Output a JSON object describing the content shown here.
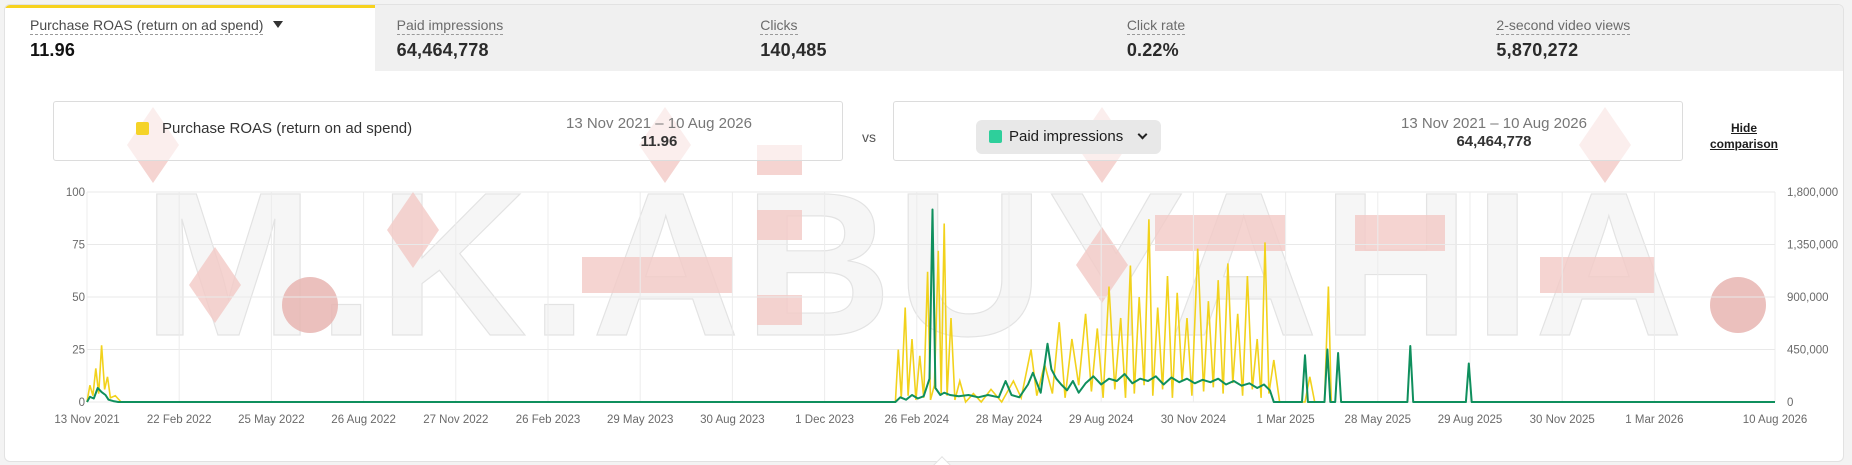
{
  "tabs": [
    {
      "label": "Purchase ROAS (return on ad spend)",
      "value": "11.96",
      "active": true
    },
    {
      "label": "Paid impressions",
      "value": "64,464,778",
      "active": false
    },
    {
      "label": "Clicks",
      "value": "140,485",
      "active": false
    },
    {
      "label": "Click rate",
      "value": "0.22%",
      "active": false
    },
    {
      "label": "2-second video views",
      "value": "5,870,272",
      "active": false
    }
  ],
  "comparison": {
    "primary": {
      "label": "Purchase ROAS (return on ad spend)",
      "range": "13 Nov 2021 – 10 Aug 2026",
      "value": "11.96",
      "color": "#f5d328"
    },
    "vs": "vs",
    "secondary": {
      "label": "Paid impressions",
      "range": "13 Nov 2021 – 10 Aug 2026",
      "value": "64,464,778",
      "color": "#2ecf9b"
    },
    "hide_label_line1": "Hide",
    "hide_label_line2": "comparison"
  },
  "watermark": "M.K.ABUYAHIA",
  "chart_data": {
    "type": "line",
    "x_ticks": [
      "13 Nov 2021",
      "22 Feb 2022",
      "25 May 2022",
      "26 Aug 2022",
      "27 Nov 2022",
      "26 Feb 2023",
      "29 May 2023",
      "30 Aug 2023",
      "1 Dec 2023",
      "26 Feb 2024",
      "28 May 2024",
      "29 Aug 2024",
      "30 Nov 2024",
      "1 Mar 2025",
      "28 May 2025",
      "29 Aug 2025",
      "30 Nov 2025",
      "1 Mar 2026",
      "10 Aug 2026"
    ],
    "y_left": {
      "ticks": [
        0,
        25,
        50,
        75,
        100
      ],
      "range": [
        0,
        100
      ]
    },
    "y_right": {
      "ticks": [
        "0",
        "450,000",
        "900,000",
        "1,350,000",
        "1,800,000"
      ],
      "range": [
        0,
        1800000
      ]
    },
    "grid": true,
    "colors": {
      "roas": "#f2d21c",
      "impressions": "#0f8f5d"
    },
    "series": [
      {
        "name": "Purchase ROAS (return on ad spend)",
        "axis": "left",
        "points": [
          [
            "2021-11-13",
            0
          ],
          [
            "2021-11-16",
            8
          ],
          [
            "2021-11-19",
            3
          ],
          [
            "2021-11-22",
            16
          ],
          [
            "2021-11-25",
            4
          ],
          [
            "2021-11-28",
            27
          ],
          [
            "2021-12-01",
            6
          ],
          [
            "2021-12-04",
            12
          ],
          [
            "2021-12-07",
            2
          ],
          [
            "2021-12-12",
            3
          ],
          [
            "2021-12-18",
            0
          ],
          [
            "2024-02-20",
            0
          ],
          [
            "2024-02-23",
            25
          ],
          [
            "2024-02-26",
            2
          ],
          [
            "2024-03-01",
            45
          ],
          [
            "2024-03-04",
            3
          ],
          [
            "2024-03-08",
            30
          ],
          [
            "2024-03-12",
            1
          ],
          [
            "2024-03-16",
            22
          ],
          [
            "2024-03-20",
            2
          ],
          [
            "2024-03-24",
            62
          ],
          [
            "2024-03-27",
            1
          ],
          [
            "2024-03-31",
            8
          ],
          [
            "2024-04-04",
            72
          ],
          [
            "2024-04-07",
            4
          ],
          [
            "2024-04-10",
            85
          ],
          [
            "2024-04-13",
            3
          ],
          [
            "2024-04-17",
            40
          ],
          [
            "2024-04-21",
            1
          ],
          [
            "2024-04-26",
            10
          ],
          [
            "2024-05-02",
            0
          ],
          [
            "2024-05-10",
            4
          ],
          [
            "2024-05-18",
            0
          ],
          [
            "2024-05-28",
            6
          ],
          [
            "2024-06-08",
            0
          ],
          [
            "2024-06-20",
            10
          ],
          [
            "2024-06-28",
            2
          ],
          [
            "2024-07-08",
            25
          ],
          [
            "2024-07-14",
            3
          ],
          [
            "2024-07-22",
            18
          ],
          [
            "2024-07-30",
            4
          ],
          [
            "2024-08-06",
            38
          ],
          [
            "2024-08-12",
            2
          ],
          [
            "2024-08-19",
            30
          ],
          [
            "2024-08-26",
            8
          ],
          [
            "2024-09-02",
            42
          ],
          [
            "2024-09-08",
            5
          ],
          [
            "2024-09-14",
            35
          ],
          [
            "2024-09-20",
            2
          ],
          [
            "2024-09-26",
            55
          ],
          [
            "2024-10-02",
            6
          ],
          [
            "2024-10-08",
            40
          ],
          [
            "2024-10-13",
            2
          ],
          [
            "2024-10-18",
            65
          ],
          [
            "2024-10-22",
            4
          ],
          [
            "2024-10-27",
            50
          ],
          [
            "2024-11-01",
            8
          ],
          [
            "2024-11-06",
            87
          ],
          [
            "2024-11-10",
            3
          ],
          [
            "2024-11-15",
            45
          ],
          [
            "2024-11-20",
            6
          ],
          [
            "2024-11-25",
            60
          ],
          [
            "2024-11-30",
            2
          ],
          [
            "2024-12-05",
            52
          ],
          [
            "2024-12-10",
            10
          ],
          [
            "2024-12-15",
            40
          ],
          [
            "2024-12-20",
            3
          ],
          [
            "2024-12-26",
            73
          ],
          [
            "2025-01-01",
            5
          ],
          [
            "2025-01-06",
            48
          ],
          [
            "2025-01-11",
            7
          ],
          [
            "2025-01-16",
            58
          ],
          [
            "2025-01-21",
            4
          ],
          [
            "2025-01-26",
            66
          ],
          [
            "2025-01-31",
            9
          ],
          [
            "2025-02-05",
            42
          ],
          [
            "2025-02-10",
            3
          ],
          [
            "2025-02-15",
            60
          ],
          [
            "2025-02-20",
            6
          ],
          [
            "2025-02-25",
            30
          ],
          [
            "2025-03-01",
            2
          ],
          [
            "2025-03-05",
            76
          ],
          [
            "2025-03-09",
            4
          ],
          [
            "2025-03-14",
            20
          ],
          [
            "2025-03-20",
            0
          ],
          [
            "2025-04-15",
            0
          ],
          [
            "2025-04-20",
            12
          ],
          [
            "2025-04-25",
            0
          ],
          [
            "2025-05-05",
            0
          ],
          [
            "2025-05-09",
            55
          ],
          [
            "2025-05-12",
            0
          ]
        ]
      },
      {
        "name": "Paid impressions",
        "axis": "right",
        "points": [
          [
            "2021-11-13",
            0
          ],
          [
            "2021-11-16",
            45000
          ],
          [
            "2021-11-20",
            30000
          ],
          [
            "2021-11-24",
            120000
          ],
          [
            "2021-11-28",
            85000
          ],
          [
            "2021-12-02",
            60000
          ],
          [
            "2021-12-05",
            20000
          ],
          [
            "2021-12-10",
            8000
          ],
          [
            "2021-12-15",
            0
          ],
          [
            "2024-02-20",
            0
          ],
          [
            "2024-02-25",
            40000
          ],
          [
            "2024-03-02",
            20000
          ],
          [
            "2024-03-08",
            60000
          ],
          [
            "2024-03-14",
            30000
          ],
          [
            "2024-03-20",
            50000
          ],
          [
            "2024-03-26",
            200000
          ],
          [
            "2024-03-29",
            1650000
          ],
          [
            "2024-04-01",
            120000
          ],
          [
            "2024-04-06",
            60000
          ],
          [
            "2024-04-10",
            80000
          ],
          [
            "2024-04-16",
            60000
          ],
          [
            "2024-04-25",
            50000
          ],
          [
            "2024-05-05",
            60000
          ],
          [
            "2024-05-15",
            40000
          ],
          [
            "2024-05-25",
            60000
          ],
          [
            "2024-06-05",
            40000
          ],
          [
            "2024-06-12",
            180000
          ],
          [
            "2024-06-18",
            60000
          ],
          [
            "2024-06-26",
            40000
          ],
          [
            "2024-07-05",
            150000
          ],
          [
            "2024-07-10",
            250000
          ],
          [
            "2024-07-18",
            80000
          ],
          [
            "2024-07-25",
            500000
          ],
          [
            "2024-07-29",
            280000
          ],
          [
            "2024-08-03",
            200000
          ],
          [
            "2024-08-08",
            150000
          ],
          [
            "2024-08-14",
            100000
          ],
          [
            "2024-08-20",
            180000
          ],
          [
            "2024-08-26",
            80000
          ],
          [
            "2024-09-02",
            160000
          ],
          [
            "2024-09-10",
            220000
          ],
          [
            "2024-09-18",
            150000
          ],
          [
            "2024-09-26",
            200000
          ],
          [
            "2024-10-04",
            180000
          ],
          [
            "2024-10-12",
            240000
          ],
          [
            "2024-10-20",
            160000
          ],
          [
            "2024-10-28",
            200000
          ],
          [
            "2024-11-05",
            180000
          ],
          [
            "2024-11-13",
            220000
          ],
          [
            "2024-11-21",
            150000
          ],
          [
            "2024-11-29",
            210000
          ],
          [
            "2024-12-07",
            170000
          ],
          [
            "2024-12-15",
            200000
          ],
          [
            "2024-12-23",
            160000
          ],
          [
            "2024-12-31",
            190000
          ],
          [
            "2025-01-08",
            170000
          ],
          [
            "2025-01-16",
            200000
          ],
          [
            "2025-01-24",
            150000
          ],
          [
            "2025-02-01",
            180000
          ],
          [
            "2025-02-09",
            140000
          ],
          [
            "2025-02-17",
            160000
          ],
          [
            "2025-02-25",
            120000
          ],
          [
            "2025-03-04",
            150000
          ],
          [
            "2025-03-10",
            100000
          ],
          [
            "2025-03-14",
            0
          ],
          [
            "2025-04-12",
            0
          ],
          [
            "2025-04-15",
            400000
          ],
          [
            "2025-04-18",
            0
          ],
          [
            "2025-05-05",
            0
          ],
          [
            "2025-05-08",
            450000
          ],
          [
            "2025-05-11",
            0
          ],
          [
            "2025-05-16",
            0
          ],
          [
            "2025-05-19",
            420000
          ],
          [
            "2025-05-22",
            0
          ],
          [
            "2025-07-29",
            0
          ],
          [
            "2025-08-01",
            480000
          ],
          [
            "2025-08-04",
            0
          ],
          [
            "2025-09-27",
            0
          ],
          [
            "2025-09-30",
            330000
          ],
          [
            "2025-10-03",
            0
          ],
          [
            "2026-08-10",
            0
          ]
        ]
      }
    ]
  }
}
